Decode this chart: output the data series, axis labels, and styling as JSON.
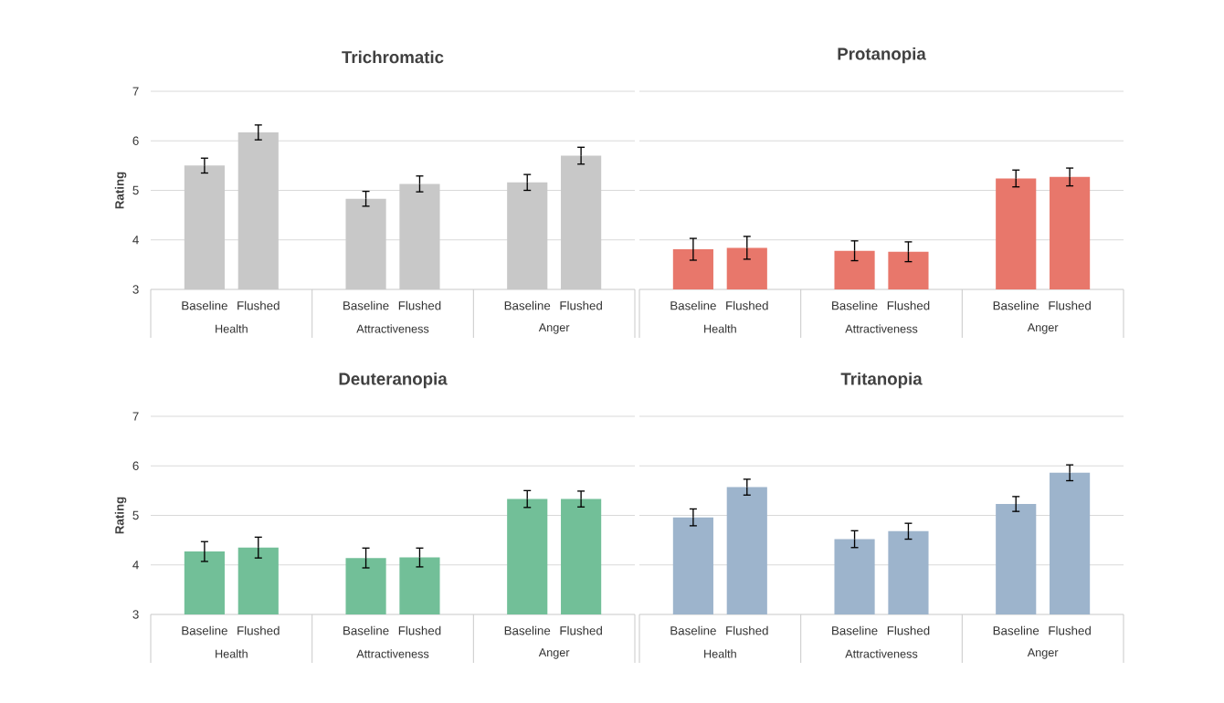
{
  "chart_data": [
    {
      "type": "bar",
      "title": "Trichromatic",
      "ylabel": "Rating",
      "categories": [
        "Baseline",
        "Flushed",
        "Baseline",
        "Flushed",
        "Baseline",
        "Flushed"
      ],
      "values": [
        5.5,
        6.17,
        4.83,
        5.13,
        5.16,
        5.7
      ],
      "errors": [
        0.15,
        0.15,
        0.15,
        0.16,
        0.16,
        0.17
      ],
      "color": "#c8c8c8",
      "ylim": [
        3,
        7
      ],
      "yticks": [
        3,
        4,
        5,
        6,
        7
      ],
      "grid": "y",
      "annotations": [
        "Health",
        "Attractiveness",
        "Anger"
      ]
    },
    {
      "type": "bar",
      "title": "Protanopia",
      "categories": [
        "Baseline",
        "Flushed",
        "Baseline",
        "Flushed",
        "Baseline",
        "Flushed"
      ],
      "values": [
        3.81,
        3.84,
        3.78,
        3.76,
        5.24,
        5.27
      ],
      "errors": [
        0.22,
        0.23,
        0.2,
        0.2,
        0.17,
        0.18
      ],
      "color": "#e8776b",
      "ylim": [
        3,
        7
      ],
      "yticks": [
        3,
        4,
        5,
        6,
        7
      ],
      "grid": "y",
      "tick_labels": "x",
      "annotations": [
        "Health",
        "Attractiveness",
        "Anger"
      ]
    },
    {
      "type": "bar",
      "title": "Deuteranopia",
      "ylabel": "Rating",
      "categories": [
        "Baseline",
        "Flushed",
        "Baseline",
        "Flushed",
        "Baseline",
        "Flushed"
      ],
      "values": [
        4.27,
        4.35,
        4.14,
        4.15,
        5.33,
        5.33
      ],
      "errors": [
        0.2,
        0.21,
        0.2,
        0.19,
        0.17,
        0.16
      ],
      "color": "#72bf98",
      "ylim": [
        3,
        7
      ],
      "yticks": [
        3,
        4,
        5,
        6,
        7
      ],
      "grid": "y",
      "annotations": [
        "Health",
        "Attractiveness",
        "Anger"
      ]
    },
    {
      "type": "bar",
      "title": "Tritanopia",
      "categories": [
        "Baseline",
        "Flushed",
        "Baseline",
        "Flushed",
        "Baseline",
        "Flushed"
      ],
      "values": [
        4.96,
        5.57,
        4.52,
        4.68,
        5.23,
        5.86
      ],
      "errors": [
        0.17,
        0.16,
        0.17,
        0.16,
        0.15,
        0.16
      ],
      "color": "#9db4cc",
      "ylim": [
        3,
        7
      ],
      "yticks": [
        3,
        4,
        5,
        6,
        7
      ],
      "grid": "y",
      "tick_labels": "x",
      "annotations": [
        "Health",
        "Attractiveness",
        "Anger"
      ]
    }
  ]
}
